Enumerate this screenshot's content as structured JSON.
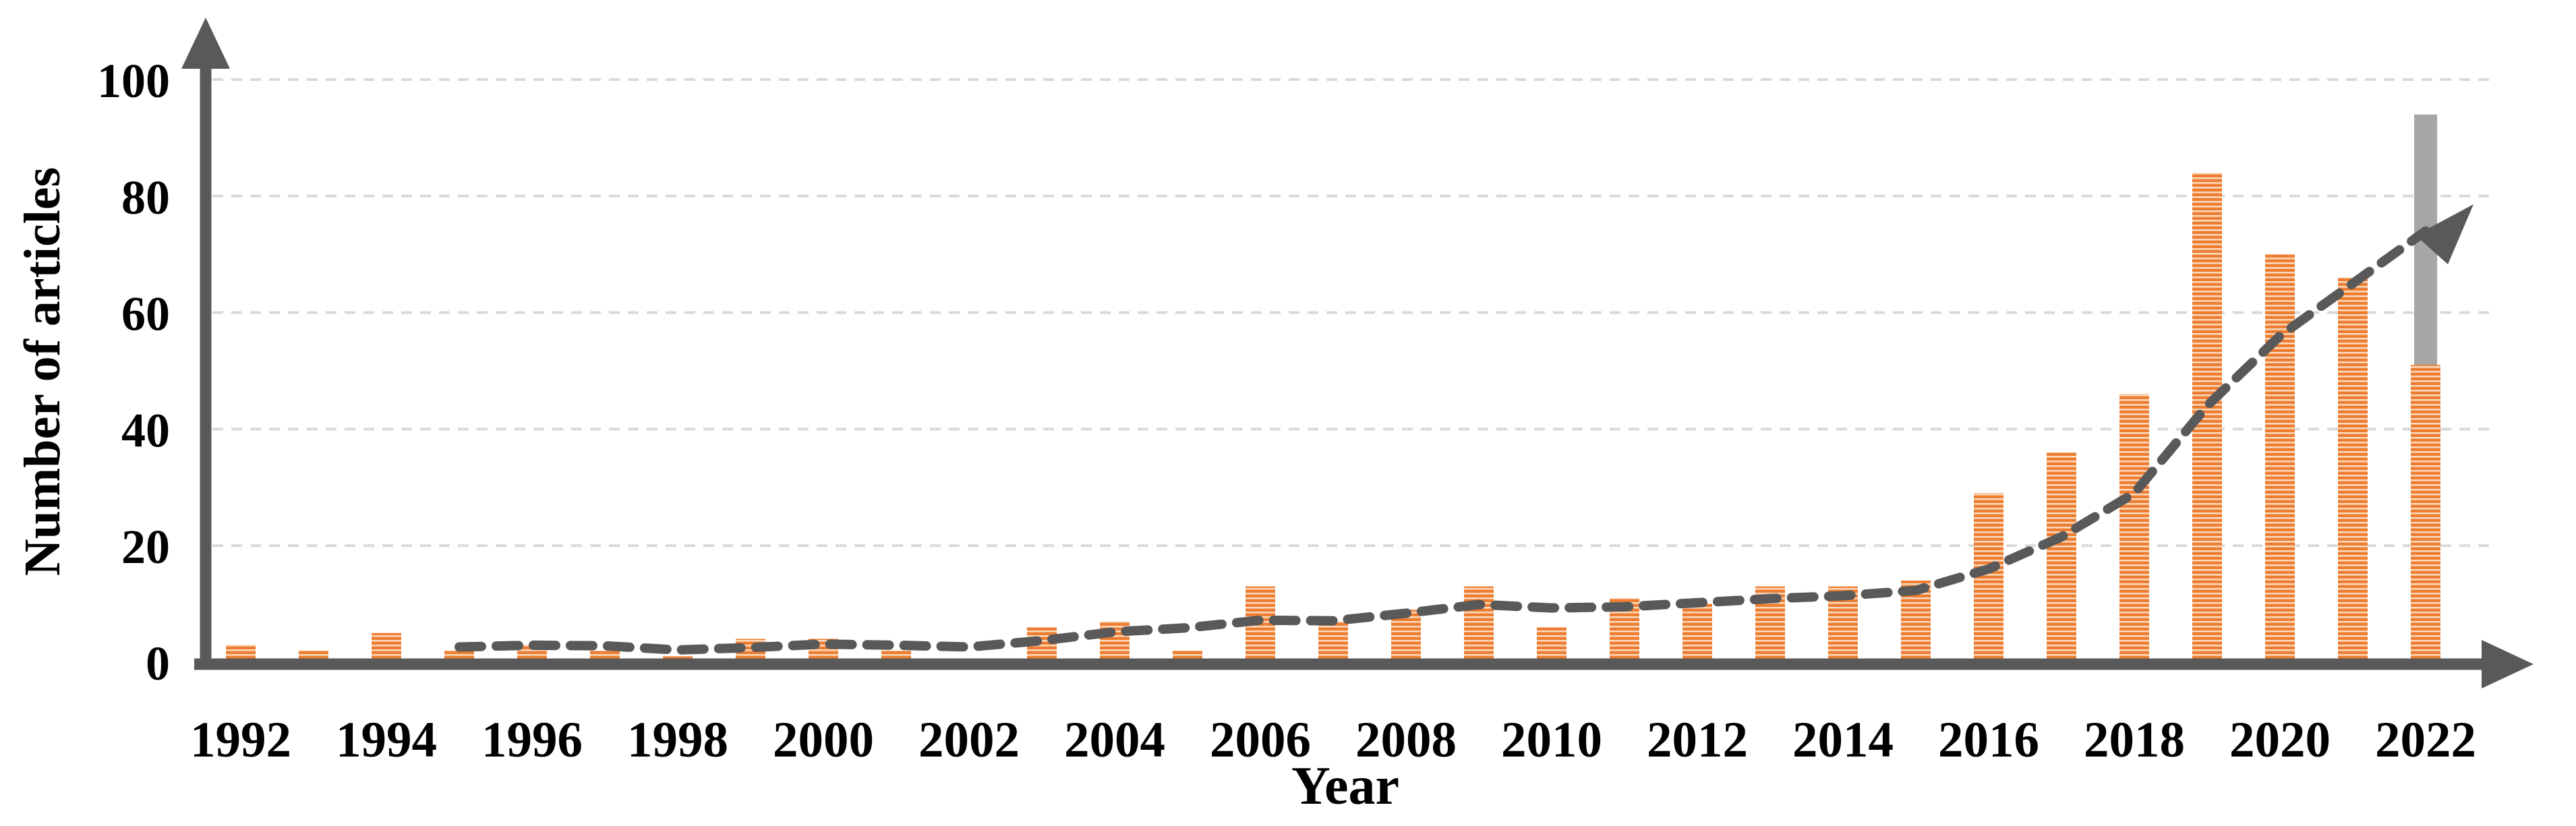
{
  "figure": {
    "kind": "statistical bar chart with dashed trend arrow",
    "background": "#ffffff"
  },
  "colors": {
    "bar_orange": "#ED7D31",
    "bar_orange_stripe": "#FBD9BD",
    "bar_gray_projection": "#A6A6A6",
    "axis": "#595959",
    "trend_line": "#595959",
    "gridline": "#D9D9D9",
    "text": "#000000"
  },
  "chart_data": {
    "type": "bar",
    "title": "",
    "xlabel": "Year",
    "ylabel": "Number of articles",
    "ylim": [
      0,
      100
    ],
    "yticks": [
      0,
      20,
      40,
      60,
      80,
      100
    ],
    "grid": "horizontal dashed gridlines at every 20, legend: none",
    "categories": [
      1992,
      1993,
      1994,
      1995,
      1996,
      1997,
      1998,
      1999,
      2000,
      2001,
      2002,
      2003,
      2004,
      2005,
      2006,
      2007,
      2008,
      2009,
      2010,
      2011,
      2012,
      2013,
      2014,
      2015,
      2016,
      2017,
      2018,
      2019,
      2020,
      2021,
      2022
    ],
    "xtick_labels": [
      "1992",
      "1994",
      "1996",
      "1998",
      "2000",
      "2002",
      "2004",
      "2006",
      "2008",
      "2010",
      "2012",
      "2014",
      "2016",
      "2018",
      "2020",
      "2022"
    ],
    "series": [
      {
        "name": "Number of articles per year",
        "type": "bar",
        "color": "#ED7D31",
        "pattern": "horizontal-stripes",
        "values": [
          3,
          2,
          5,
          2,
          3,
          2,
          1,
          4,
          4,
          2,
          0,
          6,
          7,
          2,
          13,
          7,
          9,
          13,
          6,
          11,
          10,
          13,
          13,
          14,
          29,
          36,
          46,
          84,
          70,
          66,
          51
        ]
      },
      {
        "name": "2022 full-year projection (gray bar behind 2022)",
        "type": "bar",
        "color": "#A6A6A6",
        "x": 2022,
        "value": 94
      },
      {
        "name": "Dashed growth trend ending in arrow",
        "type": "dashed-line-arrow",
        "color": "#595959",
        "points": [
          [
            1995,
            2.6
          ],
          [
            1996,
            2.9
          ],
          [
            1997,
            2.8
          ],
          [
            1998,
            2.1
          ],
          [
            1999,
            2.5
          ],
          [
            2000,
            3.1
          ],
          [
            2001,
            2.9
          ],
          [
            2002,
            2.6
          ],
          [
            2003,
            3.7
          ],
          [
            2004,
            5.2
          ],
          [
            2005,
            5.9
          ],
          [
            2006,
            7.2
          ],
          [
            2007,
            7.1
          ],
          [
            2008,
            8.4
          ],
          [
            2009,
            9.9
          ],
          [
            2010,
            9.3
          ],
          [
            2011,
            9.5
          ],
          [
            2012,
            10.2
          ],
          [
            2013,
            10.9
          ],
          [
            2014,
            11.4
          ],
          [
            2015,
            12.3
          ],
          [
            2016,
            16.0
          ],
          [
            2017,
            21.5
          ],
          [
            2018,
            29.0
          ],
          [
            2019,
            44.0
          ],
          [
            2020,
            56.0
          ],
          [
            2021,
            65.0
          ],
          [
            2022,
            74.0
          ]
        ],
        "arrow_tip_value": 78
      }
    ]
  }
}
